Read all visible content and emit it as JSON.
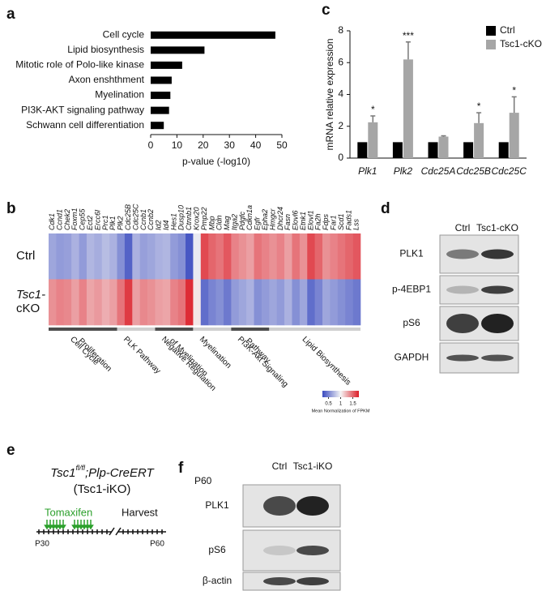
{
  "chart_data": [
    {
      "type": "bar",
      "panel": "a",
      "orientation": "horizontal",
      "categories": [
        "Cell cycle",
        "Lipid biosynthesis",
        "Mitotic role of Polo-like kinase",
        "Axon enshthment",
        "Myelination",
        "PI3K-AKT signaling pathway",
        "Schwann cell differentiation"
      ],
      "values": [
        47.5,
        20.5,
        12,
        8,
        7.5,
        7,
        5
      ],
      "color": "#000000",
      "xlabel": "p-value (-log10)",
      "xlim": [
        0,
        50
      ],
      "xticks": [
        0,
        10,
        20,
        30,
        40,
        50
      ]
    },
    {
      "type": "bar",
      "panel": "c",
      "orientation": "vertical",
      "categories": [
        "Plk1",
        "Plk2",
        "Cdc25A",
        "Cdc25B",
        "Cdc25C"
      ],
      "series": [
        {
          "name": "Ctrl",
          "color": "#000000",
          "values": [
            1,
            1,
            1,
            1,
            1
          ]
        },
        {
          "name": "Tsc1-cKO",
          "color": "#a6a6a6",
          "values": [
            2.25,
            6.2,
            1.35,
            2.2,
            2.85
          ],
          "errors": [
            0.4,
            1.1,
            0.05,
            0.65,
            1.0
          ]
        }
      ],
      "annotations": [
        {
          "x": "Plk1",
          "text": "*"
        },
        {
          "x": "Plk2",
          "text": "***"
        },
        {
          "x": "Cdc25B",
          "text": "*"
        },
        {
          "x": "Cdc25C",
          "text": "*"
        }
      ],
      "ylabel": "mRNA relative expression",
      "ylim": [
        0,
        8
      ],
      "yticks": [
        0,
        2,
        4,
        6,
        8
      ],
      "legend": "top-right"
    },
    {
      "type": "heatmap",
      "panel": "b",
      "groups": [
        {
          "label": [
            "Cell Cycle",
            "Proliferation"
          ],
          "genes": [
            "Cdk1",
            "Ccnd1",
            "Chek2",
            "Foxm1",
            "Cep55",
            "Ect2",
            "Ercc6l",
            "Prc1",
            "Plk1"
          ]
        },
        {
          "label": [
            "PLK Pathway"
          ],
          "genes": [
            "Plk2",
            "Cdc25B",
            "Cdc25C",
            "Ccnb1",
            "Ccnb2"
          ]
        },
        {
          "label": [
            "Negative Regulation",
            "of Myelination"
          ],
          "genes": [
            "Id2",
            "Id4",
            "Hes1",
            "Dusp10",
            "Ctnnb1"
          ]
        },
        {
          "label": [
            "Myelination"
          ],
          "genes": [
            "Krox20",
            "Pmp22",
            "Mbp",
            "Cldn",
            "Mag"
          ]
        },
        {
          "label": [
            "PI3K-Akt Signaling",
            "Pathway"
          ],
          "genes": [
            "Itga2",
            "Pdgfc",
            "Cdkn1a",
            "Egfr",
            "Epha2"
          ]
        },
        {
          "label": [
            "Lipid Biosynthesis"
          ],
          "genes": [
            "Hmgcr",
            "Dhcr24",
            "Fasn",
            "Elovl6",
            "Etnk1",
            "Elovl1",
            "Fa2h",
            "Fdps",
            "Far1",
            "Scd1",
            "Fads1",
            "Lss"
          ]
        }
      ],
      "rows": [
        {
          "name": [
            "Ctrl"
          ],
          "values": [
            0.65,
            0.6,
            0.62,
            0.7,
            0.6,
            0.72,
            0.68,
            0.75,
            0.7,
            0.55,
            0.35,
            0.7,
            0.62,
            0.65,
            0.7,
            0.72,
            0.6,
            0.55,
            0.3,
            0.95,
            1.6,
            1.5,
            1.45,
            1.55,
            1.4,
            1.35,
            1.3,
            1.45,
            1.4,
            1.35,
            1.4,
            1.3,
            1.45,
            1.35,
            1.6,
            1.5,
            1.35,
            1.4,
            1.45,
            1.5,
            1.55
          ]
        },
        {
          "name": [
            "Tsc1-",
            "cKO"
          ],
          "values": [
            1.35,
            1.4,
            1.38,
            1.3,
            1.4,
            1.28,
            1.32,
            1.25,
            1.3,
            1.45,
            1.65,
            1.3,
            1.38,
            1.35,
            1.3,
            1.28,
            1.4,
            1.45,
            1.7,
            1.05,
            0.4,
            0.5,
            0.55,
            0.45,
            0.6,
            0.65,
            0.7,
            0.55,
            0.6,
            0.65,
            0.6,
            0.7,
            0.55,
            0.65,
            0.4,
            0.5,
            0.65,
            0.6,
            0.55,
            0.5,
            0.45
          ]
        }
      ],
      "colorbar": {
        "label": "Mean Normalization of FPKM",
        "lim": [
          0.25,
          1.75
        ],
        "ticks": [
          0.5,
          1,
          1.5
        ]
      }
    }
  ],
  "blot_d": {
    "panel": "d",
    "lanes": [
      "Ctrl",
      "Tsc1-cKO"
    ],
    "bands": [
      "PLK1",
      "p-4EBP1",
      "pS6",
      "GAPDH"
    ]
  },
  "diagram_e": {
    "panel": "e",
    "title": [
      "Tsc1",
      "fl/fl",
      ";Plp-CreERT"
    ],
    "subtitle": "(Tsc1-iKO)",
    "treatment": "Tomaxifen",
    "endpoint": "Harvest",
    "start": "P30",
    "end": "P60"
  },
  "blot_f": {
    "panel": "f",
    "age": "P60",
    "lanes": [
      "Ctrl",
      "Tsc1-iKO"
    ],
    "bands": [
      "PLK1",
      "pS6",
      "β-actin"
    ]
  }
}
